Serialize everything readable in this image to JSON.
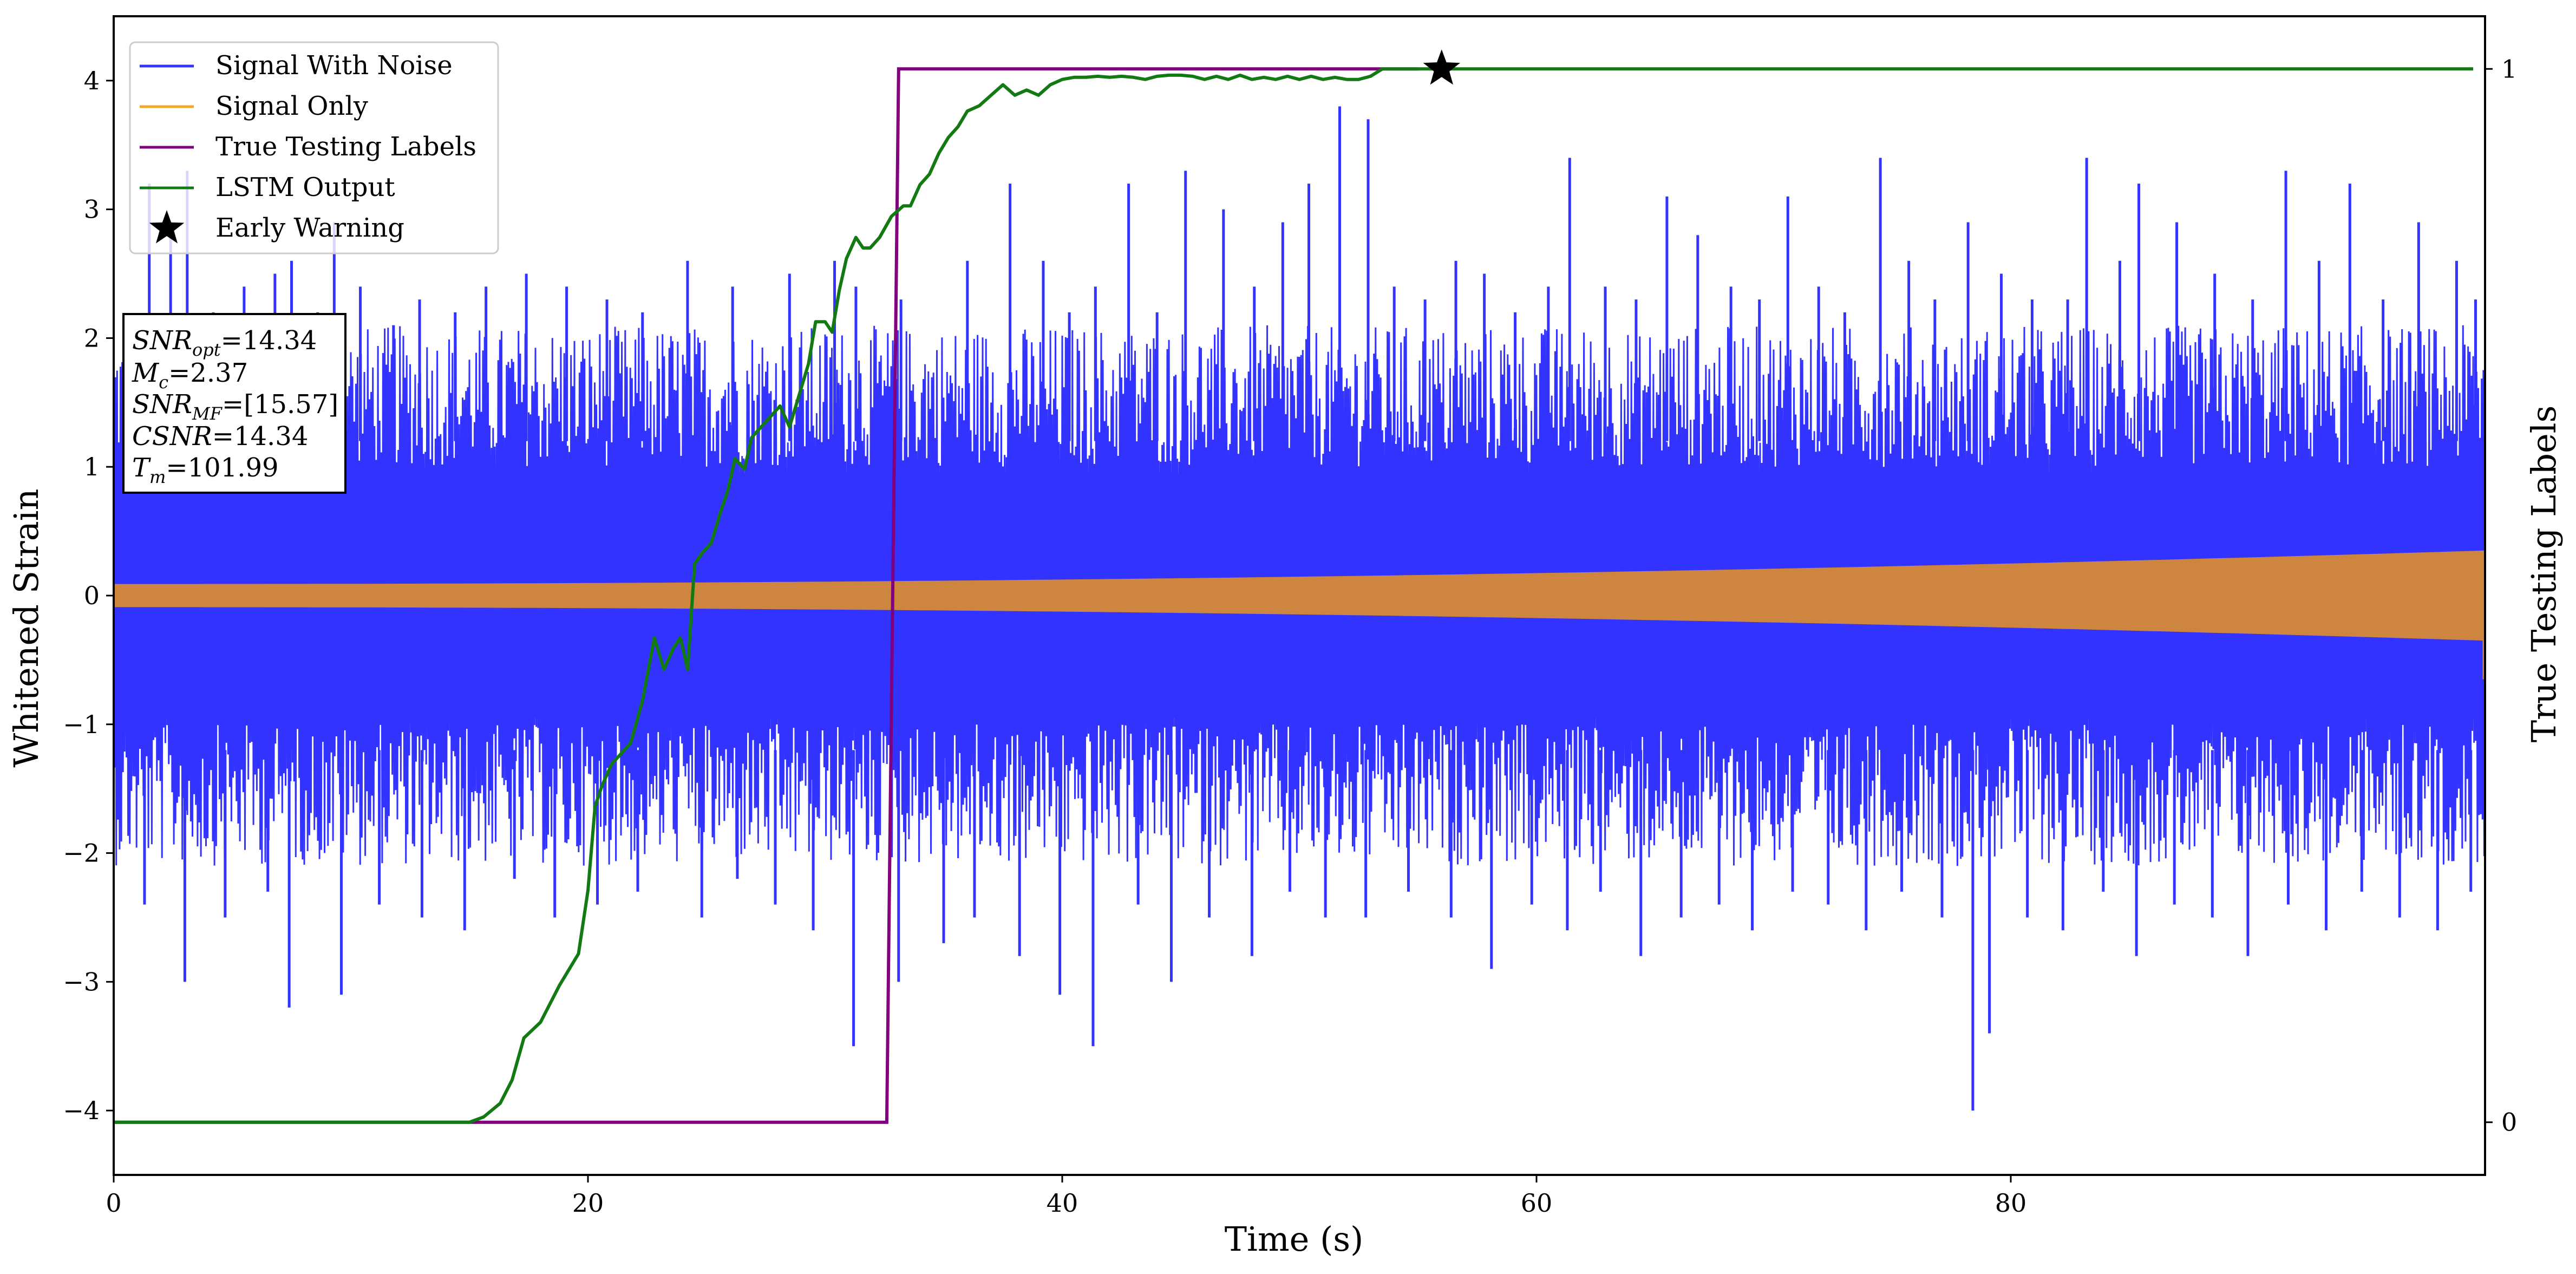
{
  "chart_data": {
    "type": "line",
    "xlabel": "Time (s)",
    "ylabel": "Whitened Strain",
    "ylabel_right": "True Testing Labels",
    "xlim": [
      0,
      100
    ],
    "ylim": [
      -4.5,
      4.5
    ],
    "ylim_right": [
      -0.05,
      1.05
    ],
    "xticks": [
      0,
      20,
      40,
      60,
      80
    ],
    "yticks": [
      -4,
      -3,
      -2,
      -1,
      0,
      1,
      2,
      3,
      4
    ],
    "yticks_right": [
      0,
      1
    ],
    "xtick_labels": [
      "0",
      "20",
      "40",
      "60",
      "80"
    ],
    "ytick_labels": [
      "−4",
      "−3",
      "−2",
      "−1",
      "0",
      "1",
      "2",
      "3",
      "4"
    ],
    "ytick_labels_right": [
      "0",
      "1"
    ],
    "grid": false,
    "legend_position": "top-left",
    "legend": [
      {
        "label": "Signal With Noise",
        "color": "#3333ff",
        "marker": "line"
      },
      {
        "label": "Signal Only",
        "color": "#f5a623",
        "marker": "line"
      },
      {
        "label": "True Testing Labels",
        "color": "#800080",
        "marker": "line"
      },
      {
        "label": "LSTM Output",
        "color": "#137a13",
        "marker": "line"
      },
      {
        "label": "Early Warning",
        "color": "#000000",
        "marker": "star"
      }
    ],
    "annotation": {
      "lines": [
        {
          "symbol": "SNR",
          "sub": "opt",
          "value": "=14.34"
        },
        {
          "symbol": "M",
          "sub": "c",
          "value": "=2.37"
        },
        {
          "symbol": "SNR",
          "sub": "MF",
          "value": "=[15.57]"
        },
        {
          "symbol": "CSNR",
          "sub": "",
          "value": "=14.34"
        },
        {
          "symbol": "T",
          "sub": "m",
          "value": "=101.99"
        }
      ]
    },
    "series": [
      {
        "name": "Signal With Noise",
        "axis": "left",
        "color": "#3333ff",
        "style": "noise",
        "band_upper_range": [
          1.0,
          2.1
        ],
        "band_lower_range": [
          -1.0,
          -2.1
        ],
        "spikes_up": [
          [
            1.5,
            3.2
          ],
          [
            2.4,
            2.8
          ],
          [
            3.1,
            3.3
          ],
          [
            4.2,
            2.2
          ],
          [
            5.5,
            2.4
          ],
          [
            6.8,
            2.5
          ],
          [
            7.5,
            2.6
          ],
          [
            8.6,
            2.2
          ],
          [
            9.3,
            2.9
          ],
          [
            10.4,
            2.4
          ],
          [
            11.8,
            2.1
          ],
          [
            12.9,
            2.3
          ],
          [
            14.4,
            2.2
          ],
          [
            15.7,
            2.4
          ],
          [
            17.4,
            2.5
          ],
          [
            19.1,
            2.4
          ],
          [
            20.8,
            2.3
          ],
          [
            22.3,
            2.2
          ],
          [
            24.2,
            2.6
          ],
          [
            26.1,
            2.4
          ],
          [
            28.5,
            2.5
          ],
          [
            30.4,
            2.6
          ],
          [
            31.3,
            2.4
          ],
          [
            33.2,
            2.3
          ],
          [
            36.0,
            2.6
          ],
          [
            37.8,
            3.2
          ],
          [
            39.2,
            2.6
          ],
          [
            40.3,
            2.2
          ],
          [
            41.4,
            2.4
          ],
          [
            42.8,
            3.2
          ],
          [
            44.0,
            2.2
          ],
          [
            45.2,
            3.3
          ],
          [
            46.8,
            3.0
          ],
          [
            48.1,
            2.4
          ],
          [
            49.3,
            2.9
          ],
          [
            50.4,
            3.2
          ],
          [
            51.7,
            3.8
          ],
          [
            52.9,
            3.7
          ],
          [
            54.0,
            2.4
          ],
          [
            55.3,
            2.3
          ],
          [
            56.6,
            2.6
          ],
          [
            57.8,
            2.5
          ],
          [
            59.1,
            2.2
          ],
          [
            60.5,
            2.4
          ],
          [
            61.4,
            3.4
          ],
          [
            62.9,
            2.4
          ],
          [
            64.2,
            2.3
          ],
          [
            65.5,
            3.1
          ],
          [
            66.8,
            2.8
          ],
          [
            68.2,
            2.4
          ],
          [
            69.4,
            2.3
          ],
          [
            70.6,
            3.1
          ],
          [
            71.9,
            2.4
          ],
          [
            73.0,
            2.2
          ],
          [
            74.5,
            3.4
          ],
          [
            75.7,
            2.6
          ],
          [
            76.8,
            2.3
          ],
          [
            78.2,
            2.9
          ],
          [
            79.6,
            2.5
          ],
          [
            80.9,
            2.3
          ],
          [
            82.4,
            2.3
          ],
          [
            83.2,
            3.4
          ],
          [
            84.6,
            2.6
          ],
          [
            85.4,
            3.2
          ],
          [
            87.0,
            2.9
          ],
          [
            88.6,
            2.5
          ],
          [
            90.2,
            2.3
          ],
          [
            91.6,
            3.3
          ],
          [
            93.0,
            2.6
          ],
          [
            94.3,
            3.2
          ],
          [
            95.7,
            2.3
          ],
          [
            97.2,
            2.9
          ],
          [
            98.8,
            2.6
          ],
          [
            99.6,
            2.3
          ]
        ],
        "spikes_down": [
          [
            1.3,
            -2.4
          ],
          [
            3.0,
            -3.0
          ],
          [
            4.7,
            -2.5
          ],
          [
            6.5,
            -2.3
          ],
          [
            7.4,
            -3.2
          ],
          [
            9.6,
            -3.1
          ],
          [
            11.2,
            -2.4
          ],
          [
            13.0,
            -2.5
          ],
          [
            14.8,
            -2.6
          ],
          [
            16.9,
            -2.2
          ],
          [
            18.6,
            -2.5
          ],
          [
            20.4,
            -2.4
          ],
          [
            22.1,
            -2.3
          ],
          [
            24.8,
            -2.5
          ],
          [
            26.3,
            -2.2
          ],
          [
            27.9,
            -2.4
          ],
          [
            29.5,
            -2.6
          ],
          [
            31.2,
            -3.5
          ],
          [
            33.1,
            -3.0
          ],
          [
            35.0,
            -2.7
          ],
          [
            36.3,
            -2.5
          ],
          [
            38.2,
            -2.8
          ],
          [
            39.9,
            -3.1
          ],
          [
            41.3,
            -3.5
          ],
          [
            43.2,
            -2.4
          ],
          [
            44.6,
            -3.0
          ],
          [
            46.2,
            -2.5
          ],
          [
            48.0,
            -2.8
          ],
          [
            49.6,
            -2.3
          ],
          [
            51.1,
            -2.5
          ],
          [
            52.8,
            -2.5
          ],
          [
            54.6,
            -2.3
          ],
          [
            56.4,
            -2.5
          ],
          [
            58.1,
            -2.9
          ],
          [
            59.8,
            -2.4
          ],
          [
            61.3,
            -2.6
          ],
          [
            62.7,
            -2.3
          ],
          [
            64.4,
            -2.8
          ],
          [
            66.1,
            -2.5
          ],
          [
            67.7,
            -2.4
          ],
          [
            69.1,
            -2.6
          ],
          [
            70.8,
            -2.3
          ],
          [
            72.3,
            -2.4
          ],
          [
            73.9,
            -2.6
          ],
          [
            75.4,
            -2.3
          ],
          [
            77.1,
            -2.5
          ],
          [
            78.4,
            -4.0
          ],
          [
            79.1,
            -3.4
          ],
          [
            80.7,
            -2.5
          ],
          [
            82.2,
            -2.6
          ],
          [
            83.9,
            -2.3
          ],
          [
            85.3,
            -2.8
          ],
          [
            86.9,
            -2.4
          ],
          [
            88.5,
            -2.5
          ],
          [
            90.0,
            -2.8
          ],
          [
            91.7,
            -2.4
          ],
          [
            93.3,
            -2.6
          ],
          [
            94.8,
            -2.3
          ],
          [
            96.4,
            -2.5
          ],
          [
            98.0,
            -2.6
          ],
          [
            99.4,
            -2.3
          ]
        ]
      },
      {
        "name": "Signal Only",
        "axis": "left",
        "color": "#cd853f",
        "style": "chirp",
        "amplitude_start": 0.09,
        "amplitude_end": 0.35
      },
      {
        "name": "True Testing Labels",
        "axis": "right",
        "color": "#800080",
        "x": [
          0,
          32.6,
          33.1,
          55.0
        ],
        "y": [
          0,
          0,
          1,
          1
        ]
      },
      {
        "name": "LSTM Output",
        "axis": "right",
        "color": "#137a13",
        "x": [
          0,
          15.0,
          15.6,
          16.3,
          16.8,
          17.3,
          18.0,
          18.8,
          19.6,
          20.0,
          20.3,
          20.6,
          21.0,
          21.4,
          21.8,
          22.3,
          22.8,
          23.2,
          23.6,
          23.9,
          24.2,
          24.5,
          24.8,
          25.2,
          25.6,
          25.9,
          26.2,
          26.6,
          26.9,
          27.3,
          27.7,
          28.1,
          28.5,
          28.9,
          29.3,
          29.6,
          30.0,
          30.3,
          30.6,
          30.9,
          31.3,
          31.6,
          31.9,
          32.3,
          32.8,
          33.3,
          33.6,
          34.0,
          34.4,
          34.8,
          35.2,
          35.6,
          36.0,
          36.5,
          37.0,
          37.5,
          38.0,
          38.5,
          39.0,
          39.5,
          40.0,
          40.5,
          41.0,
          41.5,
          42.0,
          42.5,
          43.0,
          43.5,
          44.0,
          44.5,
          45.0,
          45.5,
          46.0,
          46.5,
          47.0,
          47.5,
          48.0,
          48.5,
          49.0,
          49.5,
          50.0,
          50.5,
          51.0,
          51.5,
          52.0,
          52.5,
          53.0,
          53.5,
          54.0,
          54.5,
          55.0,
          55.5,
          56.0,
          60.0,
          80.0,
          99.5
        ],
        "y": [
          0,
          0,
          0.005,
          0.018,
          0.04,
          0.08,
          0.095,
          0.13,
          0.16,
          0.22,
          0.3,
          0.32,
          0.34,
          0.35,
          0.36,
          0.4,
          0.46,
          0.43,
          0.45,
          0.46,
          0.43,
          0.53,
          0.54,
          0.55,
          0.58,
          0.6,
          0.63,
          0.62,
          0.65,
          0.66,
          0.67,
          0.68,
          0.66,
          0.69,
          0.72,
          0.76,
          0.76,
          0.75,
          0.79,
          0.82,
          0.84,
          0.83,
          0.83,
          0.84,
          0.86,
          0.87,
          0.87,
          0.89,
          0.9,
          0.92,
          0.935,
          0.945,
          0.96,
          0.965,
          0.975,
          0.985,
          0.975,
          0.98,
          0.975,
          0.985,
          0.99,
          0.992,
          0.992,
          0.993,
          0.992,
          0.993,
          0.992,
          0.99,
          0.993,
          0.994,
          0.994,
          0.993,
          0.99,
          0.993,
          0.99,
          0.994,
          0.99,
          0.992,
          0.99,
          0.993,
          0.99,
          0.993,
          0.99,
          0.992,
          0.99,
          0.99,
          0.993,
          1.0,
          1.0,
          1.0,
          1.0,
          1.0,
          1.0,
          1.0,
          1.0,
          1.0
        ]
      }
    ],
    "early_warning": {
      "x": 56.0,
      "y_right": 1.0
    }
  }
}
